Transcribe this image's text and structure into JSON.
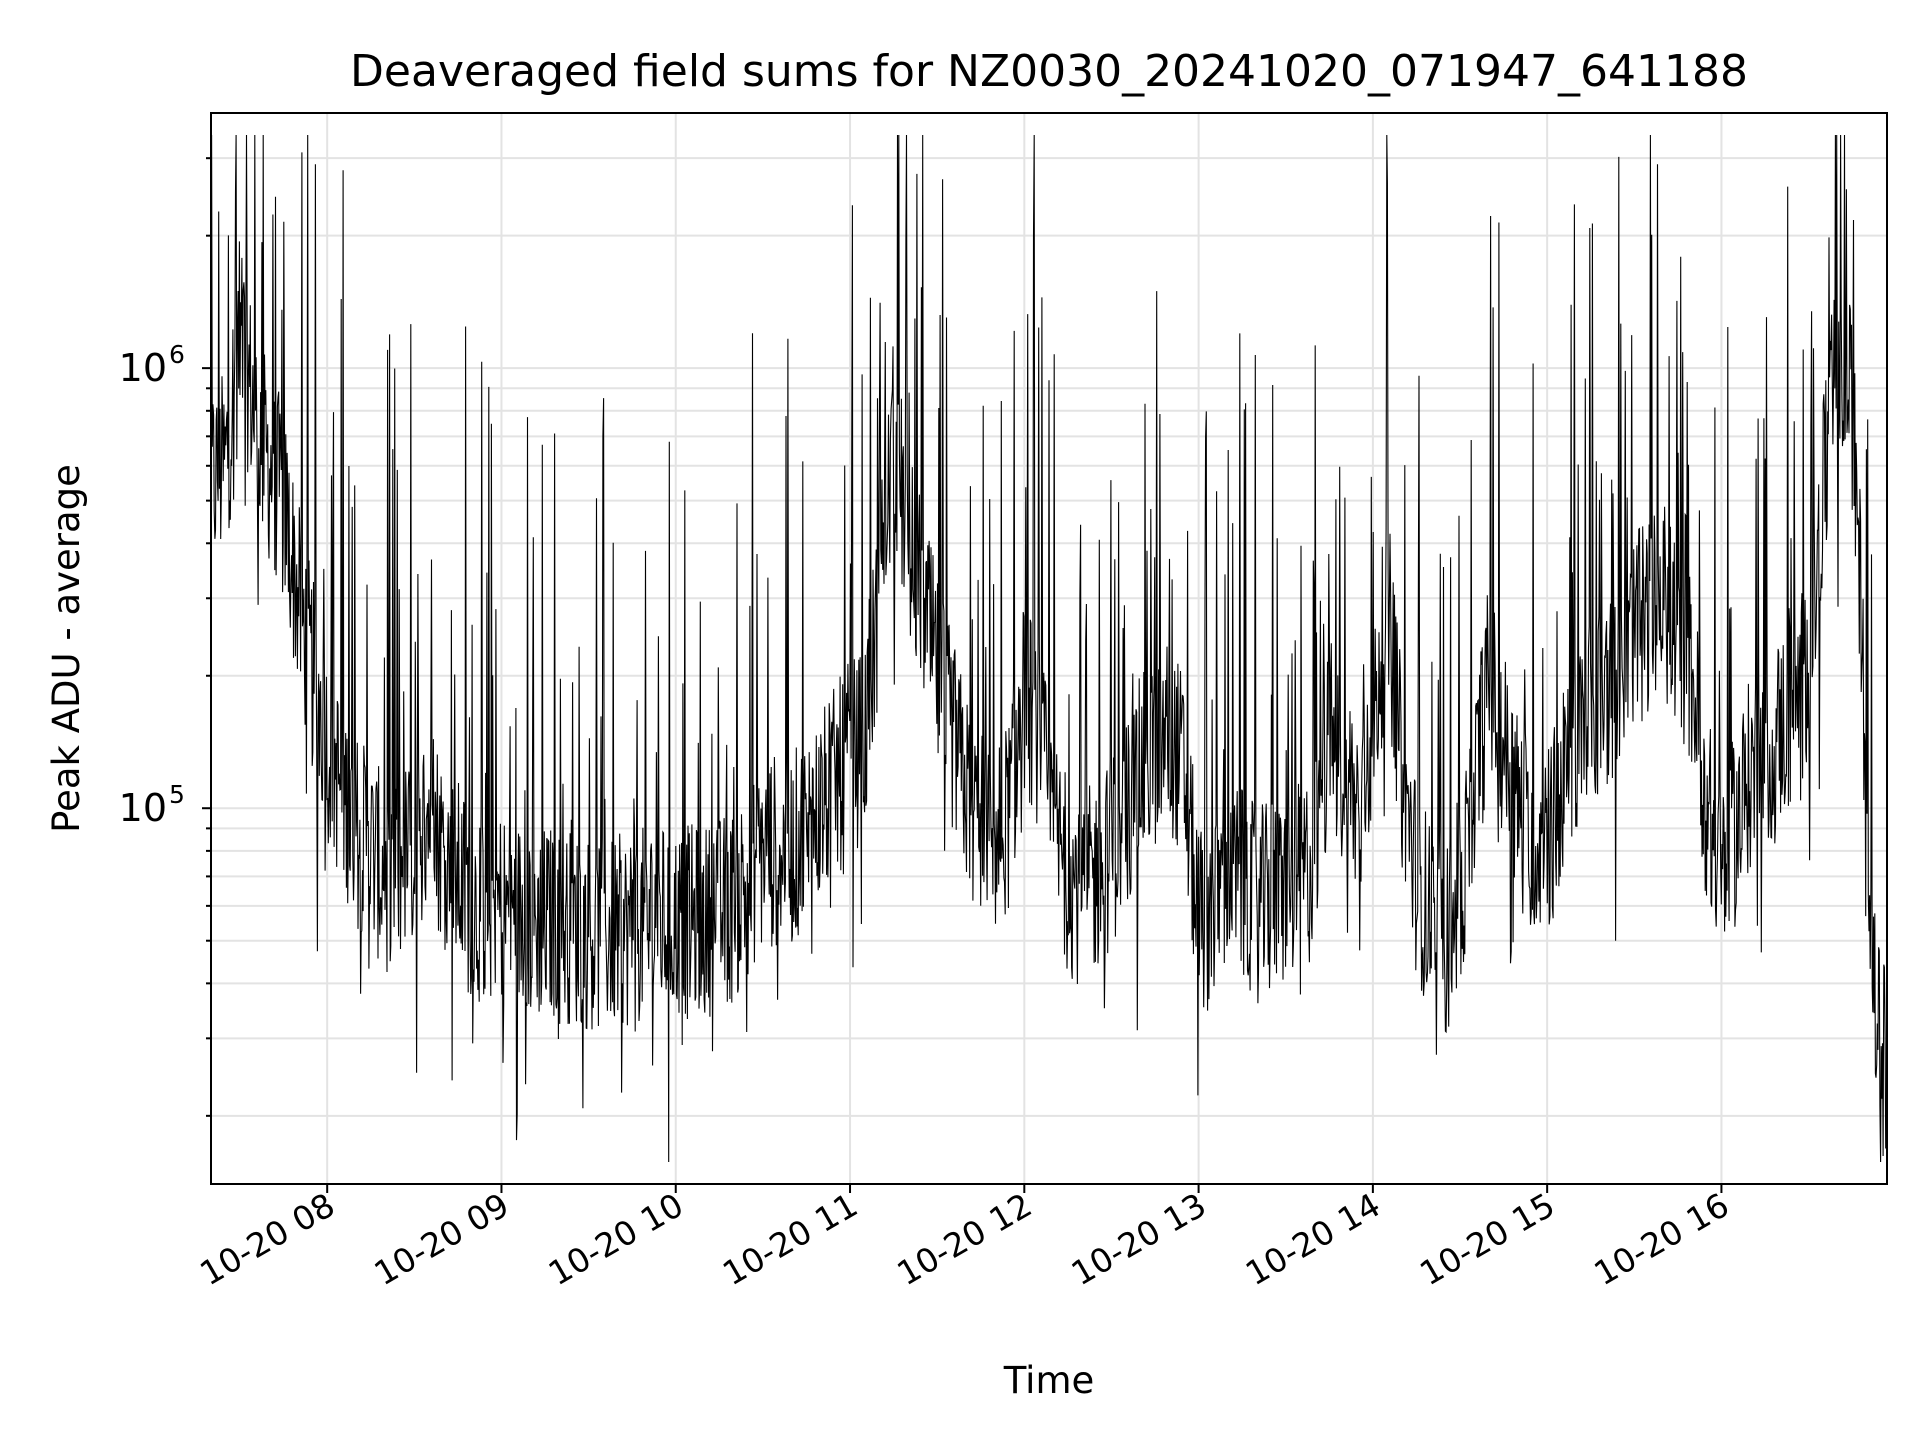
{
  "chart_data": {
    "type": "line",
    "title": "Deaveraged field sums for NZ0030_20241020_071947_641188",
    "xlabel": "Time",
    "ylabel": "Peak ADU - average",
    "yscale": "log",
    "xlim": [
      "2024-10-20 07:20",
      "2024-10-20 16:57"
    ],
    "ylim": [
      14000,
      3800000
    ],
    "x_ticks": [
      "10-20 08",
      "10-20 09",
      "10-20 10",
      "10-20 11",
      "10-20 12",
      "10-20 13",
      "10-20 14",
      "10-20 15",
      "10-20 16"
    ],
    "y_ticks": [
      {
        "base": "10",
        "exp": "5",
        "value": 100000
      },
      {
        "base": "10",
        "exp": "6",
        "value": 1000000
      }
    ],
    "grid": true,
    "line_color": "#000000",
    "series": [
      {
        "x": [
          "07:20",
          "07:25",
          "07:30",
          "07:35",
          "07:40",
          "07:45",
          "07:50",
          "07:55",
          "08:00",
          "08:05",
          "08:10",
          "08:15",
          "08:20",
          "08:25",
          "08:30",
          "08:35",
          "08:40",
          "08:45",
          "08:50",
          "08:55",
          "09:00",
          "09:10",
          "09:20",
          "09:30",
          "09:40",
          "09:50",
          "10:00",
          "10:10",
          "10:20",
          "10:30",
          "10:40",
          "10:50",
          "11:00",
          "11:05",
          "11:10",
          "11:15",
          "11:20",
          "11:25",
          "11:30",
          "11:35",
          "11:40",
          "11:45",
          "11:50",
          "11:55",
          "12:00",
          "12:05",
          "12:10",
          "12:15",
          "12:20",
          "12:25",
          "12:30",
          "12:40",
          "12:50",
          "12:55",
          "13:00",
          "13:05",
          "13:10",
          "13:20",
          "13:30",
          "13:40",
          "13:45",
          "13:50",
          "13:55",
          "14:00",
          "14:05",
          "14:10",
          "14:15",
          "14:20",
          "14:25",
          "14:30",
          "14:40",
          "14:50",
          "15:00",
          "15:10",
          "15:20",
          "15:30",
          "15:40",
          "15:50",
          "15:55",
          "16:00",
          "16:10",
          "16:20",
          "16:30",
          "16:35",
          "16:40",
          "16:45",
          "16:48",
          "16:51",
          "16:54",
          "16:57"
        ],
        "y": [
          550000,
          600000,
          1200000,
          800000,
          600000,
          500000,
          300000,
          200000,
          140000,
          110000,
          90000,
          80000,
          70000,
          75000,
          80000,
          100000,
          80000,
          70000,
          60000,
          60000,
          60000,
          55000,
          55000,
          52000,
          52000,
          55000,
          55000,
          55000,
          60000,
          80000,
          80000,
          100000,
          130000,
          140000,
          300000,
          700000,
          400000,
          300000,
          200000,
          150000,
          110000,
          90000,
          80000,
          100000,
          180000,
          150000,
          90000,
          70000,
          65000,
          70000,
          80000,
          120000,
          150000,
          120000,
          55000,
          60000,
          75000,
          60000,
          65000,
          75000,
          150000,
          120000,
          100000,
          150000,
          300000,
          120000,
          70000,
          55000,
          50000,
          60000,
          200000,
          100000,
          80000,
          150000,
          180000,
          250000,
          300000,
          200000,
          100000,
          70000,
          120000,
          150000,
          200000,
          500000,
          1100000,
          800000,
          300000,
          60000,
          30000,
          25000
        ]
      }
    ]
  }
}
